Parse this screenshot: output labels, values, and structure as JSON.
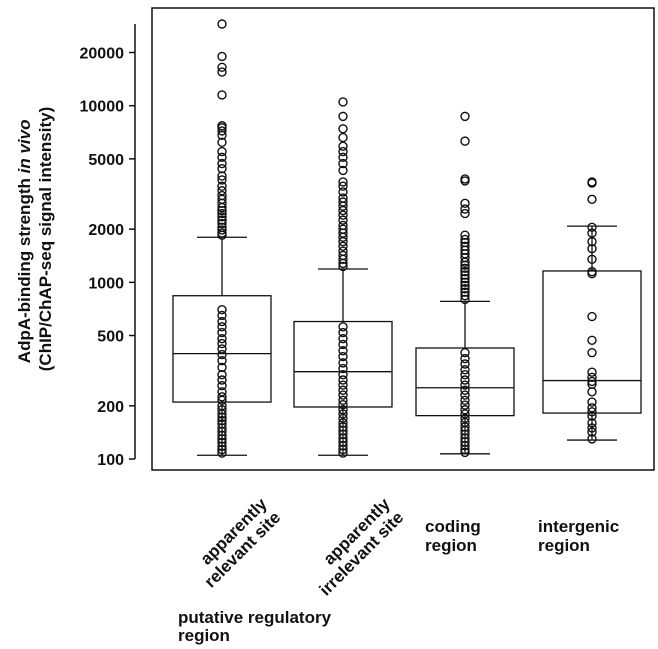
{
  "chart_data": {
    "type": "boxplot",
    "yscale": "log",
    "ylim": [
      95,
      32000
    ],
    "yticks": [
      100,
      200,
      500,
      1000,
      2000,
      5000,
      10000,
      20000
    ],
    "ytick_labels": [
      "100",
      "200",
      "500",
      "1000",
      "2000",
      "5000",
      "10000",
      "20000"
    ],
    "ylabel_line1_pre": "AdpA-binding strength ",
    "ylabel_line1_em": "in vivo",
    "ylabel_line2": "(ChIP/ChAP-seq signal intensity)",
    "group_label_line1": "putative regulatory",
    "group_label_line2": "region",
    "grid": false,
    "categories": [
      {
        "label_lines": [
          "apparently",
          "relevant site"
        ],
        "whisker_low": 105,
        "q1": 210,
        "median": 395,
        "q3": 840,
        "whisker_high": 1800,
        "outliers": [
          29000,
          19000,
          16500,
          15500,
          11500,
          7700,
          7500,
          7200,
          6800,
          6200,
          5500,
          5100,
          4700,
          4400,
          4000,
          3800,
          3500,
          3300,
          3100,
          2950,
          2800,
          2650,
          2550,
          2450,
          2350,
          2250,
          2150,
          2050,
          1980,
          1900,
          1850,
          700,
          650,
          600,
          560,
          520,
          480,
          450,
          420,
          390,
          360,
          330,
          300,
          280,
          260,
          240,
          225,
          215,
          200,
          190,
          180,
          172,
          165,
          158,
          150,
          143,
          136,
          130,
          124,
          118,
          113,
          108
        ]
      },
      {
        "label_lines": [
          "apparently",
          "irrelevant site"
        ],
        "whisker_low": 105,
        "q1": 197,
        "median": 312,
        "q3": 600,
        "whisker_high": 1190,
        "outliers": [
          10500,
          8700,
          7400,
          6600,
          5900,
          5500,
          5100,
          4700,
          4300,
          3700,
          3500,
          3250,
          3000,
          2850,
          2700,
          2550,
          2400,
          2250,
          2100,
          2000,
          1900,
          1800,
          1700,
          1600,
          1500,
          1420,
          1350,
          1280,
          1230,
          560,
          520,
          480,
          445,
          410,
          380,
          350,
          325,
          300,
          280,
          262,
          245,
          230,
          215,
          203,
          190,
          180,
          170,
          160,
          152,
          145,
          138,
          131,
          125,
          119,
          113,
          108
        ]
      },
      {
        "label_lines": [
          "coding",
          "region"
        ],
        "whisker_low": 107,
        "q1": 176,
        "median": 253,
        "q3": 425,
        "whisker_high": 780,
        "outliers": [
          8700,
          6300,
          3850,
          3750,
          2800,
          2600,
          2450,
          1850,
          1750,
          1680,
          1600,
          1520,
          1450,
          1380,
          1300,
          1250,
          1200,
          1150,
          1100,
          1050,
          1000,
          960,
          920,
          880,
          840,
          800,
          400,
          370,
          345,
          320,
          300,
          280,
          262,
          245,
          230,
          215,
          202,
          190,
          180,
          170,
          161,
          152,
          145,
          138,
          131,
          125,
          119,
          113,
          109
        ]
      },
      {
        "label_lines": [
          "intergenic",
          "region"
        ],
        "whisker_low": 128,
        "q1": 182,
        "median": 278,
        "q3": 1160,
        "whisker_high": 2080,
        "outliers": [
          3700,
          3650,
          2950,
          2050,
          1900,
          1700,
          1550,
          1350,
          1150,
          1120,
          640,
          470,
          400,
          310,
          290,
          275,
          265,
          240,
          210,
          195,
          185,
          175,
          160,
          150,
          142,
          130
        ]
      }
    ]
  }
}
